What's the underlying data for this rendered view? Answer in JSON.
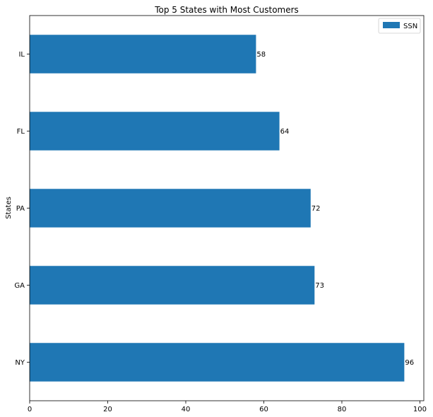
{
  "chart_data": {
    "type": "bar",
    "orientation": "horizontal",
    "title": "Top 5 States with Most Customers",
    "xlabel": "",
    "ylabel": "States",
    "categories": [
      "NY",
      "GA",
      "PA",
      "FL",
      "IL"
    ],
    "series": [
      {
        "name": "SSN",
        "values": [
          96,
          73,
          72,
          64,
          58
        ],
        "color": "#1f77b4"
      }
    ],
    "xlim": [
      0,
      101
    ],
    "xticks": [
      0,
      20,
      40,
      60,
      80,
      100
    ],
    "grid": false,
    "legend_position": "top-right",
    "data_labels": true
  }
}
